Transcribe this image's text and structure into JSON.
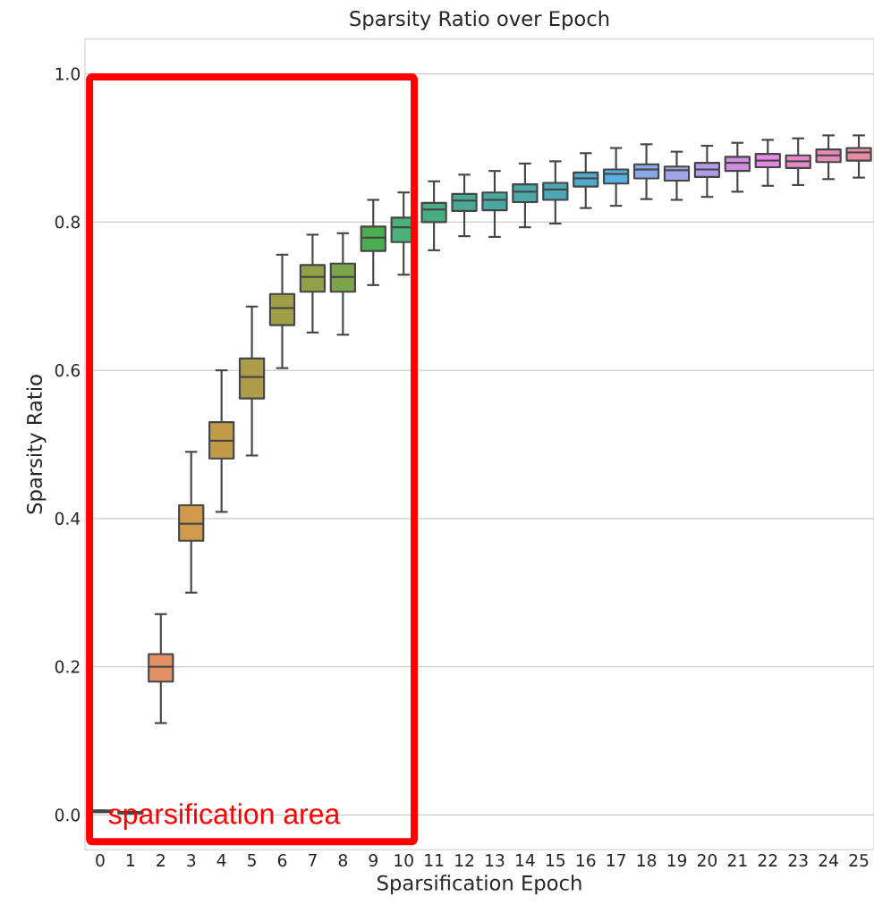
{
  "chart_data": {
    "type": "box",
    "title": "Sparsity Ratio over Epoch",
    "xlabel": "Sparsification Epoch",
    "ylabel": "Sparsity Ratio",
    "categories": [
      "0",
      "1",
      "2",
      "3",
      "4",
      "5",
      "6",
      "7",
      "8",
      "9",
      "10",
      "11",
      "12",
      "13",
      "14",
      "15",
      "16",
      "17",
      "18",
      "19",
      "20",
      "21",
      "22",
      "23",
      "24",
      "25"
    ],
    "boxes": [
      {
        "low": 0.004,
        "q1": 0.004,
        "median": 0.005,
        "q3": 0.006,
        "high": 0.006
      },
      {
        "low": 0.002,
        "q1": 0.002,
        "median": 0.003,
        "q3": 0.004,
        "high": 0.004
      },
      {
        "low": 0.124,
        "q1": 0.18,
        "median": 0.2,
        "q3": 0.217,
        "high": 0.271
      },
      {
        "low": 0.3,
        "q1": 0.37,
        "median": 0.393,
        "q3": 0.418,
        "high": 0.49
      },
      {
        "low": 0.409,
        "q1": 0.481,
        "median": 0.505,
        "q3": 0.53,
        "high": 0.6
      },
      {
        "low": 0.485,
        "q1": 0.562,
        "median": 0.591,
        "q3": 0.616,
        "high": 0.686
      },
      {
        "low": 0.603,
        "q1": 0.661,
        "median": 0.684,
        "q3": 0.703,
        "high": 0.756
      },
      {
        "low": 0.651,
        "q1": 0.706,
        "median": 0.726,
        "q3": 0.742,
        "high": 0.783
      },
      {
        "low": 0.648,
        "q1": 0.706,
        "median": 0.726,
        "q3": 0.744,
        "high": 0.785
      },
      {
        "low": 0.715,
        "q1": 0.761,
        "median": 0.779,
        "q3": 0.794,
        "high": 0.83
      },
      {
        "low": 0.729,
        "q1": 0.773,
        "median": 0.793,
        "q3": 0.806,
        "high": 0.84
      },
      {
        "low": 0.762,
        "q1": 0.8,
        "median": 0.817,
        "q3": 0.826,
        "high": 0.855
      },
      {
        "low": 0.781,
        "q1": 0.815,
        "median": 0.829,
        "q3": 0.838,
        "high": 0.864
      },
      {
        "low": 0.78,
        "q1": 0.816,
        "median": 0.83,
        "q3": 0.84,
        "high": 0.869
      },
      {
        "low": 0.793,
        "q1": 0.827,
        "median": 0.841,
        "q3": 0.851,
        "high": 0.879
      },
      {
        "low": 0.798,
        "q1": 0.83,
        "median": 0.844,
        "q3": 0.853,
        "high": 0.882
      },
      {
        "low": 0.819,
        "q1": 0.848,
        "median": 0.859,
        "q3": 0.867,
        "high": 0.893
      },
      {
        "low": 0.822,
        "q1": 0.852,
        "median": 0.865,
        "q3": 0.871,
        "high": 0.9
      },
      {
        "low": 0.831,
        "q1": 0.859,
        "median": 0.871,
        "q3": 0.878,
        "high": 0.905
      },
      {
        "low": 0.83,
        "q1": 0.856,
        "median": 0.87,
        "q3": 0.875,
        "high": 0.895
      },
      {
        "low": 0.834,
        "q1": 0.861,
        "median": 0.871,
        "q3": 0.88,
        "high": 0.903
      },
      {
        "low": 0.841,
        "q1": 0.869,
        "median": 0.88,
        "q3": 0.888,
        "high": 0.907
      },
      {
        "low": 0.849,
        "q1": 0.874,
        "median": 0.883,
        "q3": 0.892,
        "high": 0.911
      },
      {
        "low": 0.85,
        "q1": 0.873,
        "median": 0.882,
        "q3": 0.89,
        "high": 0.913
      },
      {
        "low": 0.858,
        "q1": 0.881,
        "median": 0.89,
        "q3": 0.898,
        "high": 0.917
      },
      {
        "low": 0.86,
        "q1": 0.883,
        "median": 0.894,
        "q3": 0.9,
        "high": 0.917
      }
    ],
    "colors": [
      "#e68a8a",
      "#e58c78",
      "#e39066",
      "#d2994d",
      "#c29b48",
      "#ad9c48",
      "#a09d47",
      "#92a048",
      "#7ba54a",
      "#4aae4e",
      "#4bb17a",
      "#4aad7f",
      "#48aa94",
      "#4aa8a0",
      "#4ba7a8",
      "#4ca6b4",
      "#53a8cb",
      "#5baee0",
      "#8aa8e6",
      "#a3a6e6",
      "#b49de6",
      "#cf8ee0",
      "#e48ae0",
      "#e68ac8",
      "#e48cb8",
      "#e58ca4"
    ],
    "ylim": [
      -0.047,
      1.047
    ],
    "yticks": [
      {
        "value": 0,
        "label": "0.0"
      },
      {
        "value": 0.2,
        "label": "0.2"
      },
      {
        "value": 0.4,
        "label": "0.4"
      },
      {
        "value": 0.6,
        "label": "0.6"
      },
      {
        "value": 0.8,
        "label": "0.8"
      },
      {
        "value": 1,
        "label": "1.0"
      }
    ],
    "grid": "y",
    "annotations": [
      "sparsification area"
    ]
  }
}
